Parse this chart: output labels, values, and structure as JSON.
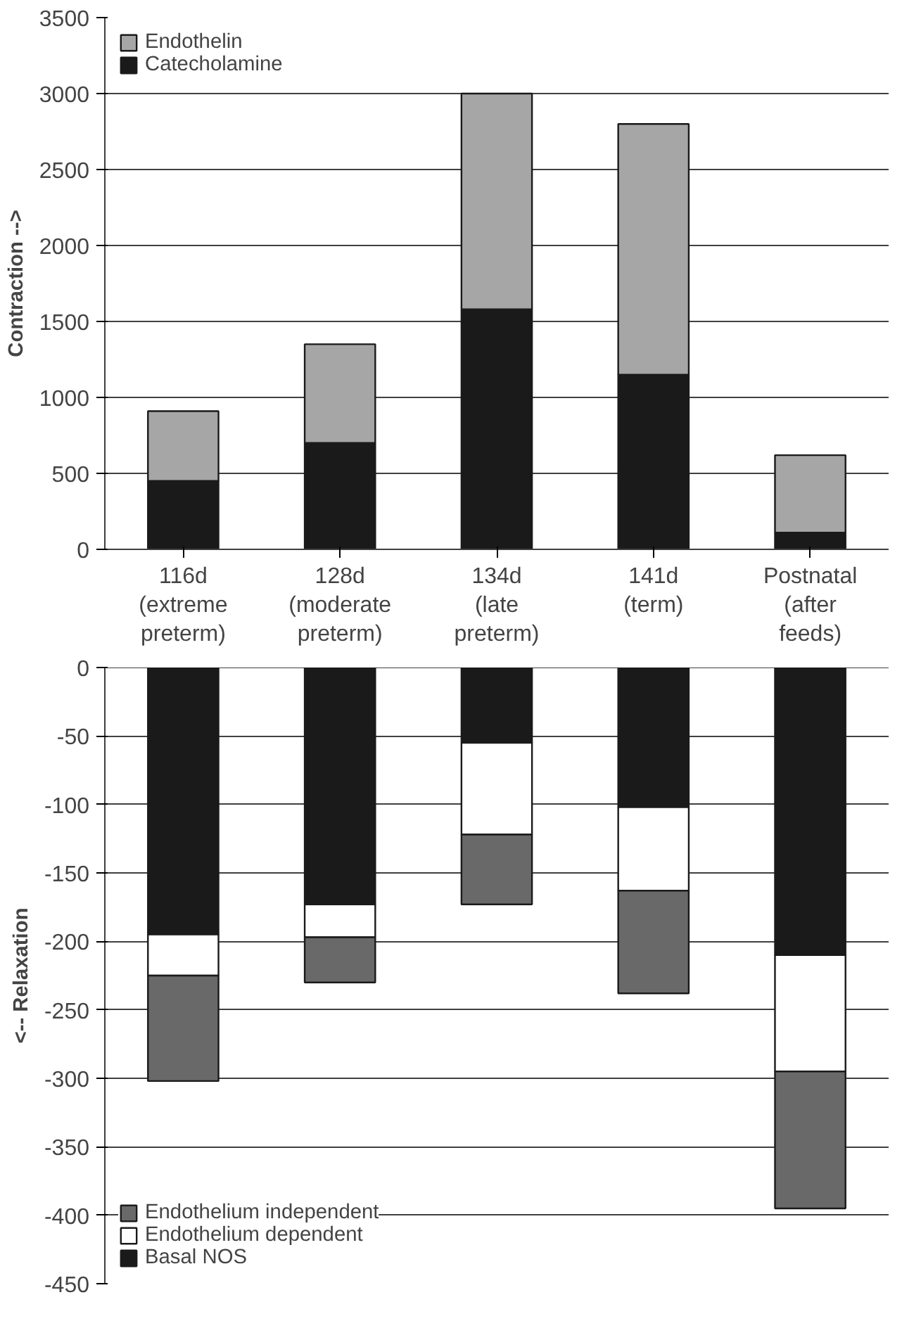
{
  "chart_data": [
    {
      "type": "bar",
      "stacked": true,
      "ylabel": "Contraction -->",
      "categories": [
        "116d\n(extreme\npreterm)",
        "128d\n(moderate\npreterm)",
        "134d\n(late\npreterm)",
        "141d\n(term)",
        "Postnatal\n(after\nfeeds)"
      ],
      "series": [
        {
          "name": "Catecholamine",
          "color": "#1a1a1a",
          "values": [
            450,
            700,
            1580,
            1150,
            110
          ]
        },
        {
          "name": "Endothelin",
          "color": "#a6a6a6",
          "values": [
            460,
            650,
            1420,
            1650,
            510
          ]
        }
      ],
      "ylim": [
        0,
        3500
      ],
      "yticks": [
        0,
        500,
        1000,
        1500,
        2000,
        2500,
        3000,
        3500
      ],
      "grid": "y",
      "legend": "top left"
    },
    {
      "type": "bar",
      "stacked": true,
      "ylabel": "<-- Relaxation",
      "categories": [
        null,
        null,
        null,
        null,
        null
      ],
      "series": [
        {
          "name": "Basal NOS",
          "color": "#1a1a1a",
          "values": [
            -195,
            -173,
            -55,
            -102,
            -210
          ]
        },
        {
          "name": "Endothelium dependent",
          "color": "#ffffff",
          "values": [
            -30,
            -24,
            -67,
            -61,
            -85
          ]
        },
        {
          "name": "Endothelium independent",
          "color": "#696969",
          "values": [
            -77,
            -33,
            -51,
            -75,
            -100
          ]
        }
      ],
      "ylim": [
        -450,
        0
      ],
      "yticks": [
        -450,
        -400,
        -350,
        -300,
        -250,
        -200,
        -150,
        -100,
        -50,
        0
      ],
      "grid": "y",
      "legend": "bottom left",
      "tick_labels": "y"
    }
  ]
}
